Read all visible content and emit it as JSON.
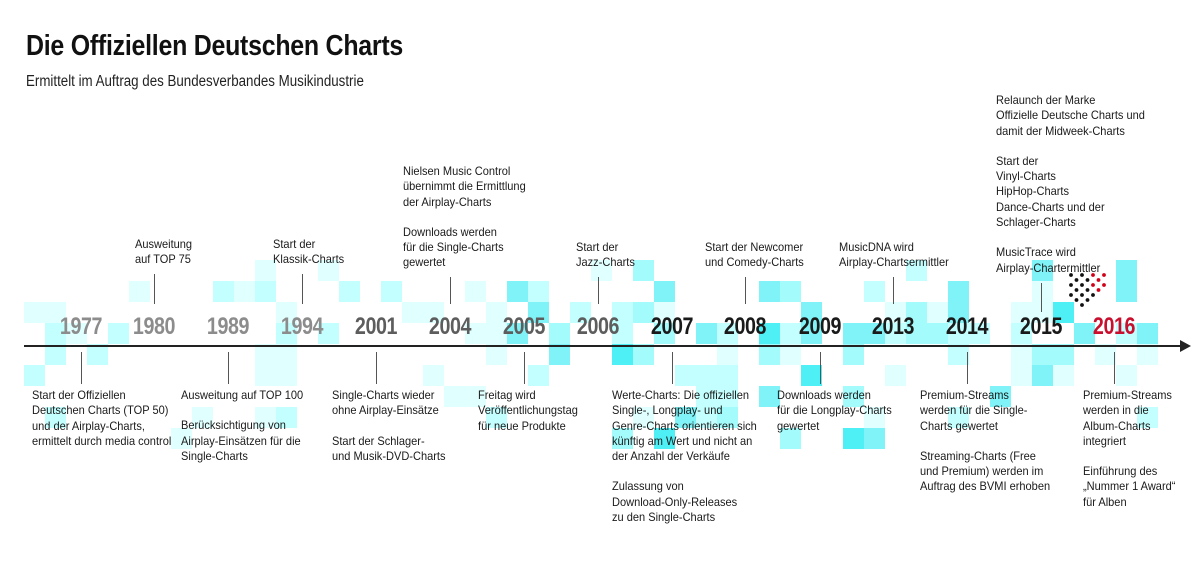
{
  "header": {
    "title": "Die Offiziellen Deutschen Charts",
    "subtitle": "Ermittelt im Auftrag des Bundesverbandes Musikindustrie"
  },
  "colors": {
    "axis": "#222222",
    "year_past": "#8c8c8c",
    "year_recent": "#1a1a1a",
    "year_current": "#c8102e",
    "accent_tiles": [
      "#e0ffff",
      "#c4ffff",
      "#a3fbfc",
      "#7ff3f7",
      "#4ff0f5"
    ]
  },
  "timeline": {
    "years": [
      {
        "label": "1977",
        "style": "past"
      },
      {
        "label": "1980",
        "style": "past"
      },
      {
        "label": "1989",
        "style": "past"
      },
      {
        "label": "1994",
        "style": "past"
      },
      {
        "label": "2001",
        "style": "mid"
      },
      {
        "label": "2004",
        "style": "mid"
      },
      {
        "label": "2005",
        "style": "mid"
      },
      {
        "label": "2006",
        "style": "mid"
      },
      {
        "label": "2007",
        "style": "recent"
      },
      {
        "label": "2008",
        "style": "recent"
      },
      {
        "label": "2009",
        "style": "recent"
      },
      {
        "label": "2013",
        "style": "recent"
      },
      {
        "label": "2014",
        "style": "recent"
      },
      {
        "label": "2015",
        "style": "recent"
      },
      {
        "label": "2016",
        "style": "current"
      }
    ],
    "events_above": [
      {
        "year": "1980",
        "lines": [
          "Ausweitung",
          "auf TOP 75"
        ]
      },
      {
        "year": "1994",
        "lines": [
          "Start der",
          "Klassik-Charts"
        ]
      },
      {
        "year": "2004",
        "lines": [
          "Nielsen Music Control",
          "übernimmt die Ermittlung",
          "der Airplay-Charts",
          "",
          "Downloads werden",
          "für die Single-Charts",
          "gewertet"
        ]
      },
      {
        "year": "2006",
        "lines": [
          "Start  der",
          "Jazz-Charts"
        ]
      },
      {
        "year": "2008",
        "lines": [
          "Start der Newcomer",
          "und Comedy-Charts"
        ]
      },
      {
        "year": "2013",
        "lines": [
          "MusicDNA wird",
          "Airplay-Chartsermittler"
        ]
      },
      {
        "year": "2015",
        "lines": [
          "Relaunch der Marke",
          "Offizielle Deutsche Charts und",
          "damit der Midweek-Charts",
          "",
          "Start der",
          "Vinyl-Charts",
          "HipHop-Charts",
          "Dance-Charts und der",
          "Schlager-Charts",
          "",
          "MusicTrace wird",
          "Airplay-Chartermittler"
        ]
      }
    ],
    "events_below": [
      {
        "year": "1977",
        "lines": [
          "Start der Offiziellen",
          "Deutschen Charts (TOP 50)",
          "und der Airplay-Charts,",
          "ermittelt durch media control"
        ]
      },
      {
        "year": "1989",
        "lines": [
          "Ausweitung auf TOP 100",
          "",
          "Berücksichtigung von",
          "Airplay-Einsätzen für die",
          "Single-Charts"
        ]
      },
      {
        "year": "2001",
        "lines": [
          "Single-Charts wieder",
          "ohne Airplay-Einsätze",
          "",
          "Start der Schlager-",
          "und Musik-DVD-Charts"
        ]
      },
      {
        "year": "2005",
        "lines": [
          "Freitag wird",
          "Veröffentlichungstag",
          "für neue Produkte"
        ]
      },
      {
        "year": "2007",
        "lines": [
          "Werte-Charts: Die offiziellen",
          "Single-, Longplay- und",
          "Genre-Charts orientieren sich",
          "künftig am Wert und nicht an",
          "der Anzahl der Verkäufe",
          "",
          "Zulassung von",
          "Download-Only-Releases",
          "zu den Single-Charts"
        ]
      },
      {
        "year": "2009",
        "lines": [
          "Downloads werden",
          "für die Longplay-Charts",
          "gewertet"
        ]
      },
      {
        "year": "2014",
        "lines": [
          "Premium-Streams",
          "werden für die Single-",
          "Charts gewertet",
          "",
          "Streaming-Charts (Free",
          "und Premium) werden im",
          "Auftrag des BVMI erhoben"
        ]
      },
      {
        "year": "2016",
        "lines": [
          "Premium-Streams",
          "werden in die",
          "Album-Charts",
          "integriert",
          "",
          "Einführung des",
          "„Nummer 1 Award“",
          "für Alben"
        ]
      }
    ]
  },
  "logo": {
    "icon": "chart-dots-logo-icon"
  }
}
